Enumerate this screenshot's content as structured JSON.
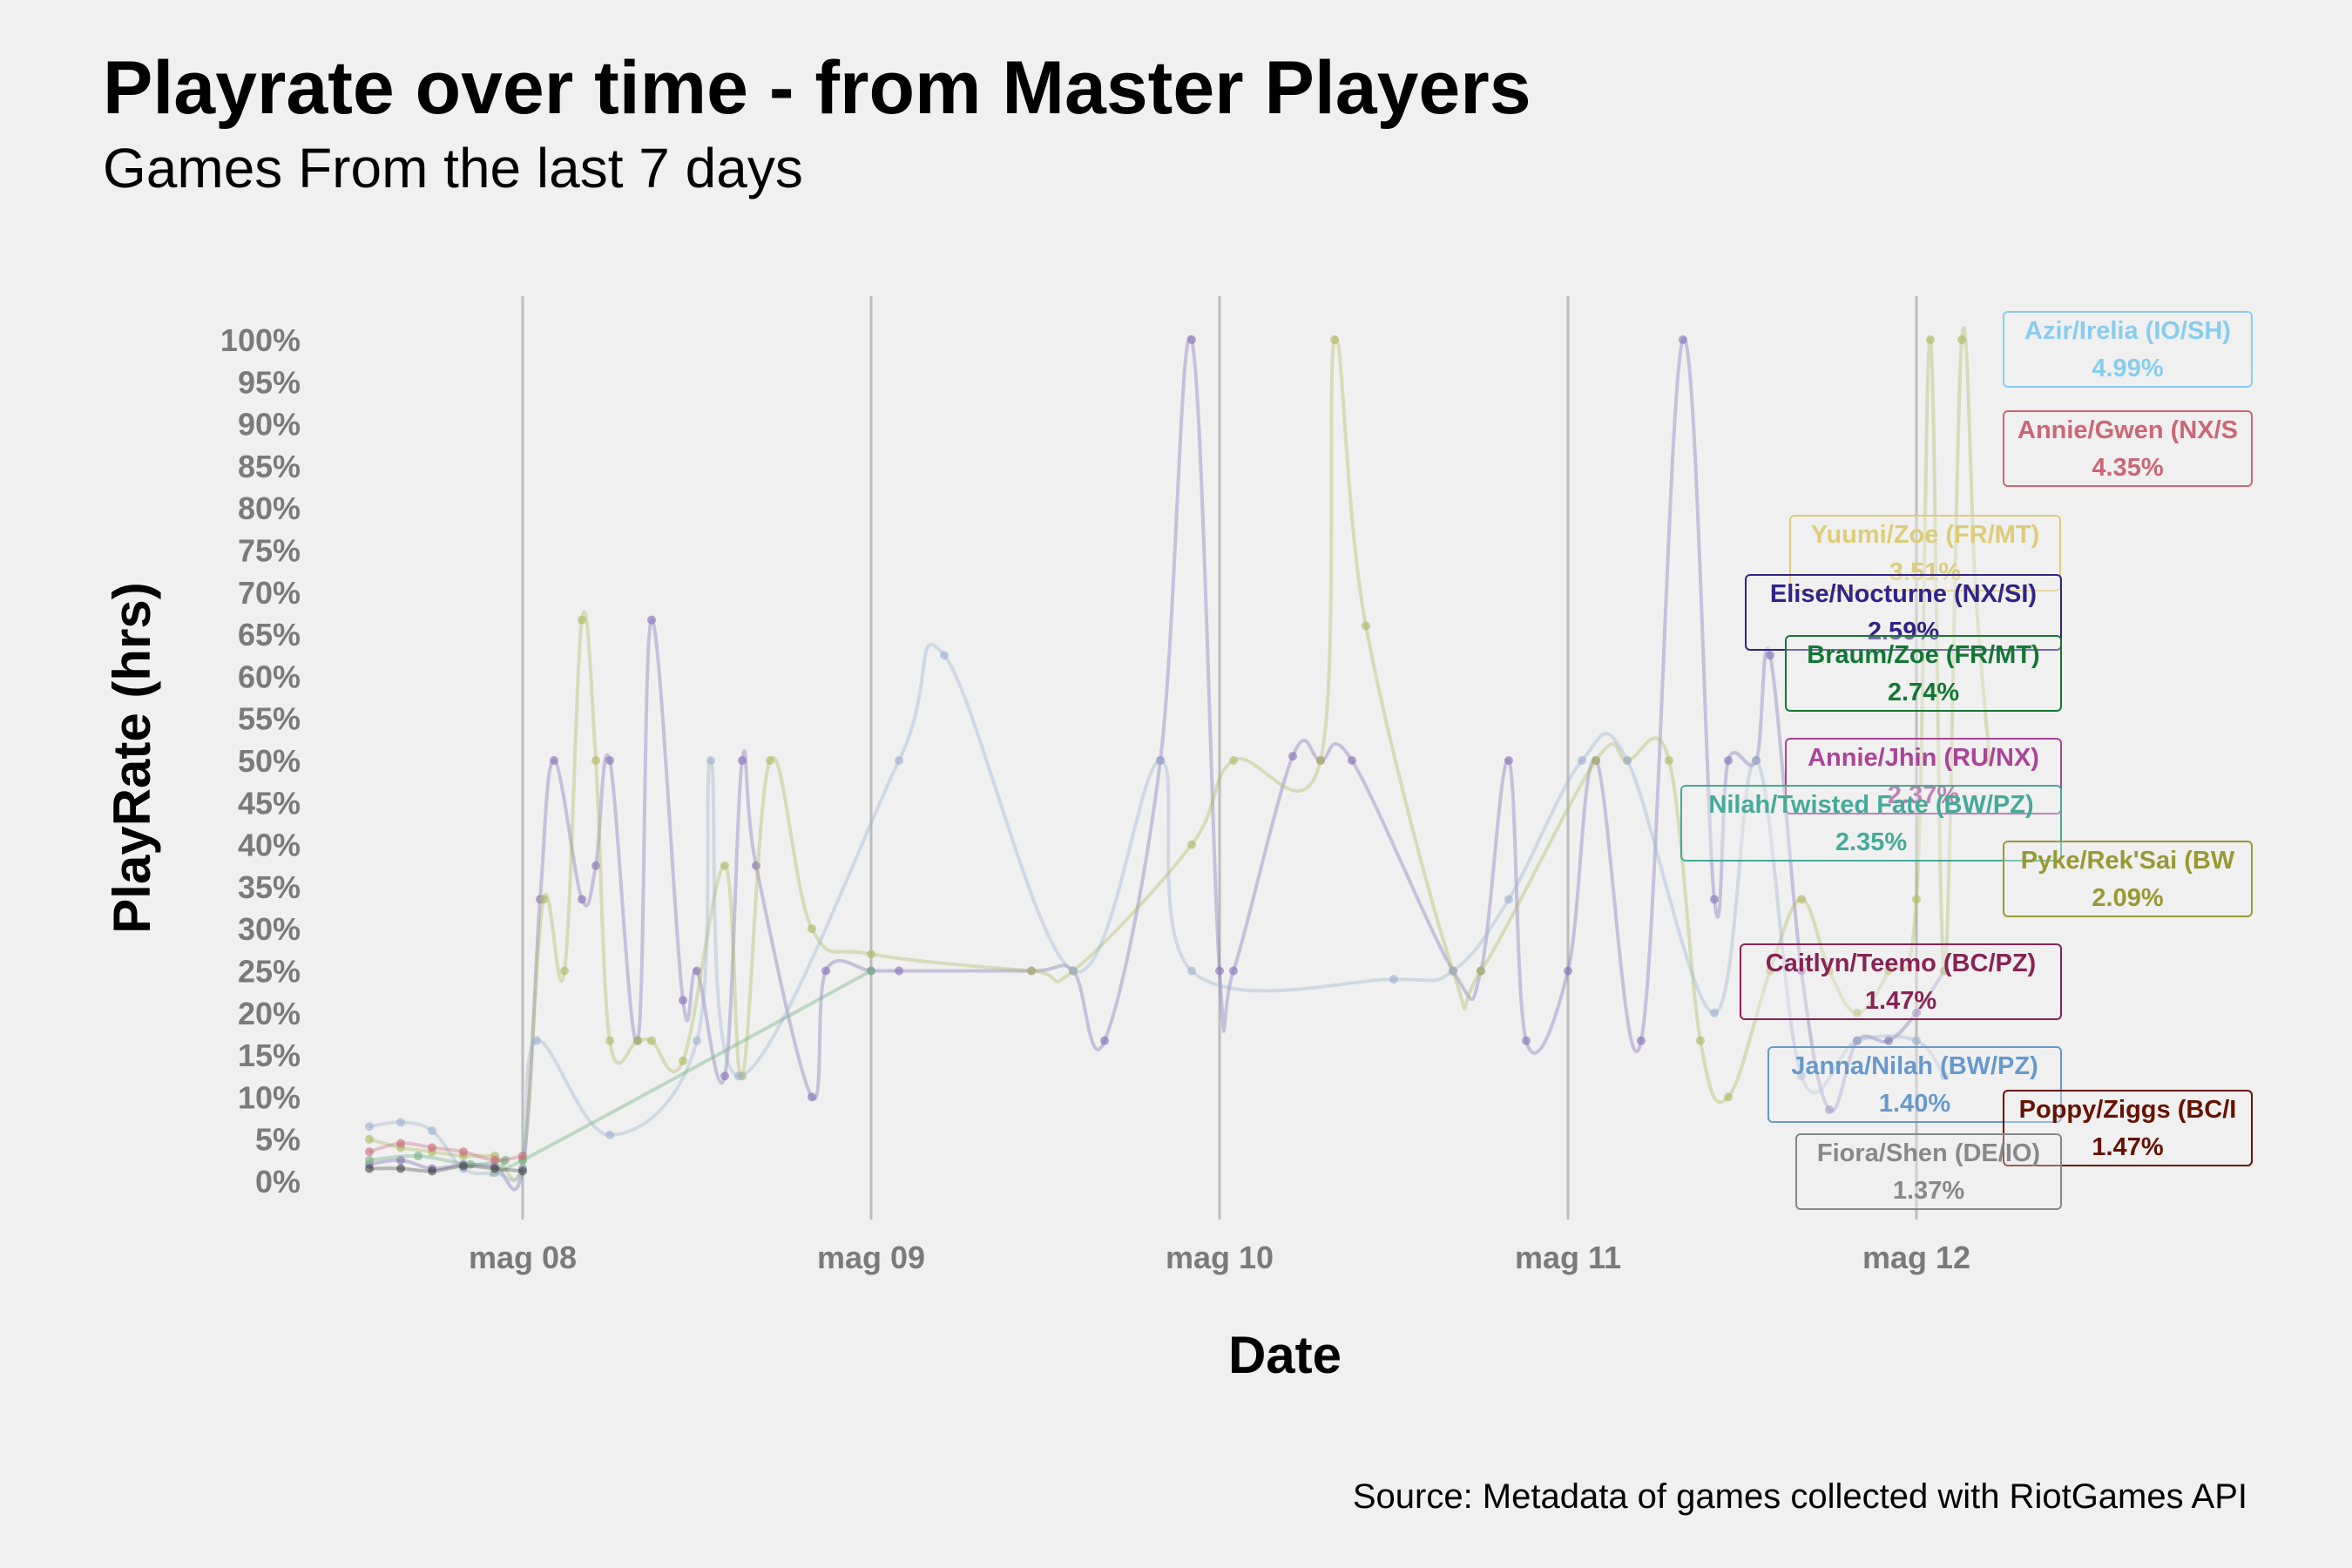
{
  "chart_data": {
    "type": "line",
    "title": "Playrate over time - from Master Players",
    "subtitle": "Games From the last 7 days",
    "caption": "Source: Metadata of games collected with RiotGames API",
    "xlabel": "Date",
    "ylabel": "PlayRate (hrs)",
    "x_ticks": [
      "mag 08",
      "mag 09",
      "mag 10",
      "mag 11",
      "mag 12"
    ],
    "x_range_days": [
      -0.45,
      2.3
    ],
    "y_ticks": [
      "0%",
      "5%",
      "10%",
      "15%",
      "20%",
      "25%",
      "30%",
      "35%",
      "40%",
      "45%",
      "50%",
      "55%",
      "60%",
      "65%",
      "70%",
      "75%",
      "80%",
      "85%",
      "90%",
      "95%",
      "100%"
    ],
    "ylim": [
      0,
      100
    ],
    "grid": "vertical major at dates",
    "series": [
      {
        "color": "#8577b8",
        "opacity": 0.4,
        "points": [
          [
            -0.44,
            2
          ],
          [
            -0.35,
            2.5
          ],
          [
            -0.26,
            1.5
          ],
          [
            -0.17,
            2
          ],
          [
            -0.08,
            1.8
          ],
          [
            0.0,
            1.5
          ],
          [
            0.05,
            33.5
          ],
          [
            0.09,
            50
          ],
          [
            0.17,
            33.5
          ],
          [
            0.21,
            37.5
          ],
          [
            0.25,
            50
          ],
          [
            0.33,
            16.7
          ],
          [
            0.37,
            66.7
          ],
          [
            0.46,
            21.5
          ],
          [
            0.5,
            25
          ],
          [
            0.58,
            12.5
          ],
          [
            0.63,
            50
          ],
          [
            0.67,
            37.5
          ],
          [
            0.83,
            10
          ],
          [
            0.87,
            25
          ],
          [
            1.0,
            25
          ],
          [
            1.08,
            25
          ],
          [
            1.46,
            25
          ],
          [
            1.58,
            25
          ],
          [
            1.67,
            16.7
          ],
          [
            1.83,
            50
          ],
          [
            1.92,
            100
          ],
          [
            2.0,
            25
          ],
          [
            2.04,
            25
          ],
          [
            2.21,
            50.5
          ],
          [
            2.29,
            50
          ],
          [
            2.38,
            50
          ],
          [
            2.67,
            25
          ],
          [
            2.75,
            25
          ],
          [
            2.83,
            50
          ],
          [
            2.88,
            16.7
          ],
          [
            3.0,
            25
          ],
          [
            3.08,
            50
          ],
          [
            3.21,
            16.7
          ],
          [
            3.33,
            100
          ],
          [
            3.42,
            33.5
          ],
          [
            3.46,
            50
          ],
          [
            3.54,
            50
          ],
          [
            3.58,
            62.5
          ],
          [
            3.67,
            25
          ],
          [
            3.75,
            8.5
          ],
          [
            3.83,
            16.7
          ],
          [
            3.92,
            16.7
          ],
          [
            4.0,
            20
          ],
          [
            4.08,
            25
          ]
        ]
      },
      {
        "color": "#b0bb66",
        "opacity": 0.4,
        "points": [
          [
            -0.44,
            5
          ],
          [
            -0.35,
            4
          ],
          [
            -0.26,
            3.5
          ],
          [
            -0.17,
            3
          ],
          [
            -0.08,
            3
          ],
          [
            0.0,
            2.5
          ],
          [
            0.06,
            33.5
          ],
          [
            0.12,
            25
          ],
          [
            0.17,
            66.7
          ],
          [
            0.21,
            50
          ],
          [
            0.25,
            16.7
          ],
          [
            0.33,
            16.7
          ],
          [
            0.37,
            16.7
          ],
          [
            0.46,
            14.3
          ],
          [
            0.58,
            37.5
          ],
          [
            0.63,
            12.5
          ],
          [
            0.71,
            50
          ],
          [
            0.83,
            30
          ],
          [
            1.0,
            27
          ],
          [
            1.46,
            25
          ],
          [
            1.58,
            25
          ],
          [
            1.92,
            40
          ],
          [
            2.04,
            50
          ],
          [
            2.29,
            50
          ],
          [
            2.33,
            100
          ],
          [
            2.42,
            66
          ],
          [
            2.67,
            25
          ],
          [
            2.75,
            25
          ],
          [
            3.08,
            50
          ],
          [
            3.17,
            50
          ],
          [
            3.29,
            50
          ],
          [
            3.38,
            16.7
          ],
          [
            3.46,
            10
          ],
          [
            3.58,
            25
          ],
          [
            3.67,
            33.5
          ],
          [
            3.75,
            25
          ],
          [
            3.83,
            20
          ],
          [
            3.92,
            25
          ],
          [
            4.0,
            33.5
          ],
          [
            4.04,
            100
          ],
          [
            4.08,
            25
          ],
          [
            4.13,
            100
          ],
          [
            4.17,
            70
          ],
          [
            4.21,
            50
          ]
        ]
      },
      {
        "color": "#9fb4d0",
        "opacity": 0.4,
        "points": [
          [
            -0.44,
            6.5
          ],
          [
            -0.35,
            7
          ],
          [
            -0.26,
            6
          ],
          [
            -0.17,
            1.5
          ],
          [
            -0.08,
            1
          ],
          [
            0.0,
            1.5
          ],
          [
            0.04,
            16.7
          ],
          [
            0.25,
            5.5
          ],
          [
            0.5,
            16.7
          ],
          [
            0.54,
            50
          ],
          [
            0.62,
            12.5
          ],
          [
            1.08,
            50
          ],
          [
            1.21,
            62.5
          ],
          [
            1.58,
            25
          ],
          [
            1.83,
            50
          ],
          [
            1.92,
            25
          ],
          [
            2.5,
            24
          ],
          [
            2.67,
            25
          ],
          [
            2.83,
            33.5
          ],
          [
            3.04,
            50
          ],
          [
            3.17,
            50
          ],
          [
            3.42,
            20
          ],
          [
            3.54,
            50
          ],
          [
            3.67,
            12.5
          ],
          [
            3.83,
            16.7
          ],
          [
            4.0,
            16.7
          ],
          [
            4.08,
            12.5
          ]
        ]
      },
      {
        "color": "#7fb88e",
        "opacity": 0.45,
        "points": [
          [
            -0.44,
            2.5
          ],
          [
            -0.3,
            3
          ],
          [
            -0.15,
            2
          ],
          [
            -0.05,
            2.5
          ],
          [
            0.0,
            2.5
          ],
          [
            1.0,
            25
          ]
        ]
      },
      {
        "color": "#cc6677",
        "opacity": 0.35,
        "points": [
          [
            -0.44,
            3.5
          ],
          [
            -0.35,
            4.5
          ],
          [
            -0.26,
            4
          ],
          [
            -0.17,
            3.5
          ],
          [
            -0.08,
            2.5
          ],
          [
            0.0,
            3
          ]
        ]
      },
      {
        "color": "#444444",
        "opacity": 0.35,
        "points": [
          [
            -0.44,
            1.5
          ],
          [
            -0.35,
            1.5
          ],
          [
            -0.26,
            1.2
          ],
          [
            -0.17,
            1.8
          ],
          [
            -0.08,
            1.5
          ],
          [
            0.0,
            1.2
          ]
        ]
      }
    ],
    "labels": [
      {
        "name": "Azir/Irelia (IO/SH)",
        "value": "4.99%",
        "color": "#88ccee",
        "ref_y": 100
      },
      {
        "name": "Annie/Gwen (NX/S",
        "value": "4.35%",
        "color": "#cc6677",
        "ref_y": 88
      },
      {
        "name": "Yuumi/Zoe (FR/MT)",
        "value": "3.51%",
        "color": "#ddcc77",
        "ref_y": 74
      },
      {
        "name": "Elise/Nocturne (NX/SI)",
        "value": "2.59%",
        "color": "#332288",
        "ref_y": 67
      },
      {
        "name": "Braum/Zoe (FR/MT)",
        "value": "2.74%",
        "color": "#117733",
        "ref_y": 60
      },
      {
        "name": "Annie/Jhin (RU/NX)",
        "value": "2.37%",
        "color": "#aa4499",
        "ref_y": 48
      },
      {
        "name": "Nilah/Twisted Fate (BW/PZ)",
        "value": "2.35%",
        "color": "#44aa99",
        "ref_y": 42
      },
      {
        "name": "Pyke/Rek'Sai (BW",
        "value": "2.09%",
        "color": "#999933",
        "ref_y": 36
      },
      {
        "name": "Caitlyn/Teemo (BC/PZ)",
        "value": "1.47%",
        "color": "#882255",
        "ref_y": 23
      },
      {
        "name": "Janna/Nilah (BW/PZ)",
        "value": "1.40%",
        "color": "#6699cc",
        "ref_y": 13
      },
      {
        "name": "Poppy/Ziggs (BC/I",
        "value": "1.47%",
        "color": "#661100",
        "ref_y": 6
      },
      {
        "name": "Fiora/Shen (DE/IO)",
        "value": "1.37%",
        "color": "#888888",
        "ref_y": 3
      }
    ]
  }
}
